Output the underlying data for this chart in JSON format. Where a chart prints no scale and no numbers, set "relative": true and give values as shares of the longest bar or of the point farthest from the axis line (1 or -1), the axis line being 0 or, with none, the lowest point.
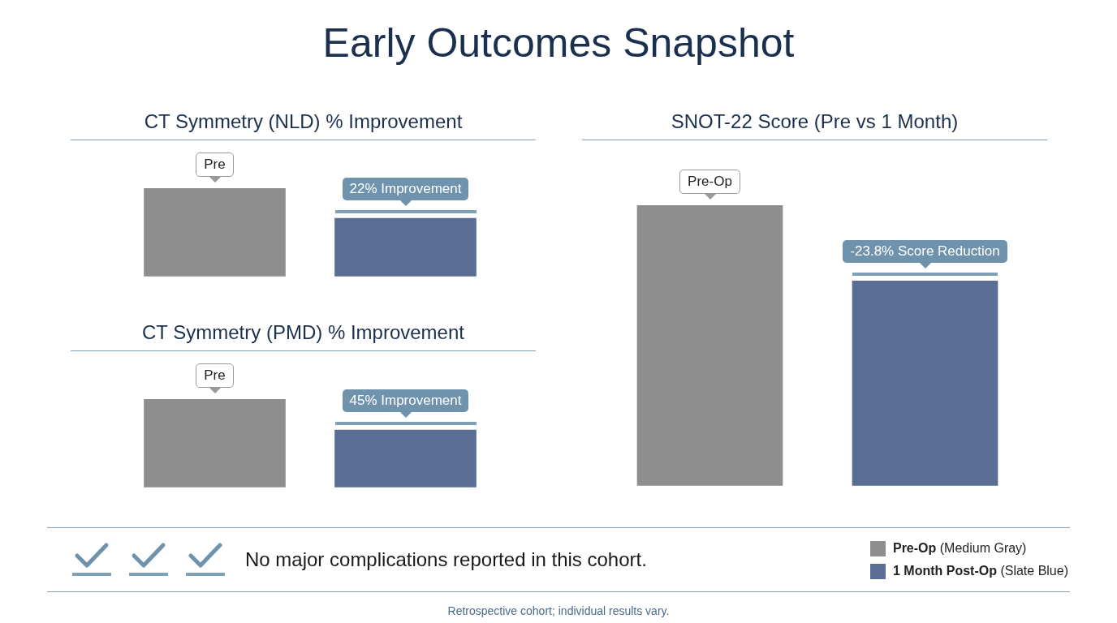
{
  "chart_data": [
    {
      "type": "other",
      "title": "Early Outcomes Snapshot",
      "annotations": [
        "No major complications reported in this cohort.",
        "Retrospective cohort; individual results vary."
      ]
    },
    {
      "type": "bar",
      "title": "CT Symmetry (NLD) % Improvement",
      "relative": true,
      "categories": [
        null,
        null
      ],
      "annotations": [
        "Pre",
        "22% Improvement"
      ],
      "values": [
        1,
        0.66
      ],
      "colors": [
        "#8e8e8e",
        "#5a6d92"
      ]
    },
    {
      "type": "bar",
      "title": "CT Symmetry (PMD) % Improvement",
      "relative": true,
      "categories": [
        null,
        null
      ],
      "annotations": [
        "Pre",
        "45% Improvement"
      ],
      "values": [
        1,
        0.65
      ],
      "colors": [
        "#8e8e8e",
        "#5a6d92"
      ]
    },
    {
      "type": "bar",
      "title": "SNOT-22 Score (Pre vs 1 Month)",
      "relative": true,
      "stacked": true,
      "legend": "bottom right",
      "categories": [
        null,
        null
      ],
      "annotations": [
        "Pre-Op",
        "-23.8% Score Reduction"
      ],
      "series": [
        {
          "name": "Pre-Op (Medium Gray)",
          "color": "#8e8e8e",
          "values": [
            1,
            null
          ]
        },
        {
          "name": "1 Month Post-Op (Slate Blue)",
          "color": "#5a6d92",
          "values": [
            null,
            0.73
          ]
        }
      ]
    }
  ]
}
